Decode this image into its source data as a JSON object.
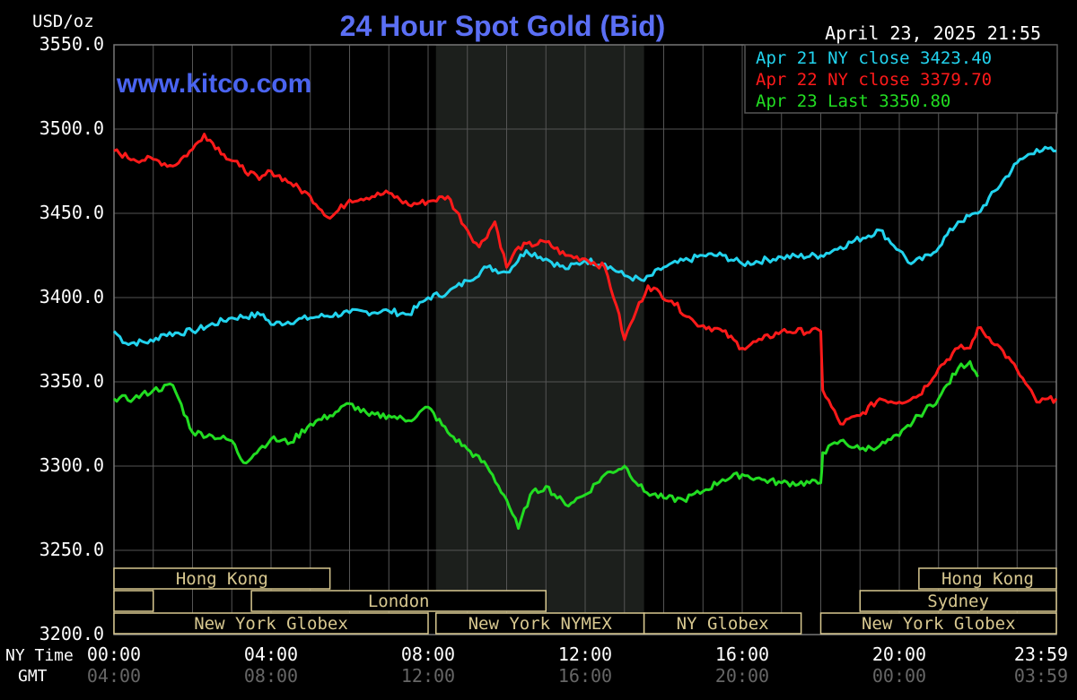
{
  "header": {
    "title": "24 Hour Spot Gold (Bid)",
    "unit_label": "USD/oz",
    "timestamp": "April 23, 2025 21:55",
    "watermark": "www.kitco.com"
  },
  "legend": [
    {
      "text": "Apr 21 NY close 3423.40",
      "color": "#22d3ee"
    },
    {
      "text": "Apr 22 NY close 3379.70",
      "color": "#ff1a1a"
    },
    {
      "text": "Apr 23 Last 3350.80",
      "color": "#22dd22"
    }
  ],
  "axis_labels": {
    "ny_time": "NY Time",
    "gmt": "GMT"
  },
  "colors": {
    "background": "#000000",
    "grid": "#555555",
    "nymex_shade": "#1c1f1c",
    "title": "#5b6ff5",
    "market_box": "#d8c890",
    "axis_text": "#ffffff",
    "gmt_text": "#666666"
  },
  "markets": [
    {
      "label": "Hong Kong",
      "start": 0,
      "end": 5.5,
      "row": 0
    },
    {
      "label": "",
      "start": 0,
      "end": 1.0,
      "row": 1
    },
    {
      "label": "London",
      "start": 3.5,
      "end": 11.0,
      "row": 1
    },
    {
      "label": "New York Globex",
      "start": 0,
      "end": 8.0,
      "row": 2
    },
    {
      "label": "New York NYMEX",
      "start": 8.2,
      "end": 13.5,
      "row": 2
    },
    {
      "label": "NY Globex",
      "start": 13.5,
      "end": 17.5,
      "row": 2
    },
    {
      "label": "Hong Kong",
      "start": 20.5,
      "end": 24.0,
      "row": 0
    },
    {
      "label": "Sydney",
      "start": 19.0,
      "end": 24.0,
      "row": 1
    },
    {
      "label": "New York Globex",
      "start": 18.0,
      "end": 24.0,
      "row": 2
    }
  ],
  "chart_data": {
    "type": "line",
    "title": "24 Hour Spot Gold (Bid)",
    "ylabel": "USD/oz",
    "x_unit": "hours (NY time)",
    "xlim": [
      0,
      24
    ],
    "ylim": [
      3200,
      3550
    ],
    "y_ticks": [
      "3550.0",
      "3500.0",
      "3450.0",
      "3400.0",
      "3350.0",
      "3300.0",
      "3250.0",
      "3200.0"
    ],
    "x_ticks": [
      {
        "ny": "00:00",
        "gmt": "04:00"
      },
      {
        "ny": "04:00",
        "gmt": "08:00"
      },
      {
        "ny": "08:00",
        "gmt": "12:00"
      },
      {
        "ny": "12:00",
        "gmt": "16:00"
      },
      {
        "ny": "16:00",
        "gmt": "20:00"
      },
      {
        "ny": "20:00",
        "gmt": "00:00"
      },
      {
        "ny": "23:59",
        "gmt": "03:59"
      }
    ],
    "nymex_session": [
      8.2,
      13.5
    ],
    "grid": true,
    "legend_position": "top-right",
    "series": [
      {
        "name": "Apr 21 NY close 3423.40",
        "color": "#22d3ee",
        "points": [
          [
            0,
            3380
          ],
          [
            0.3,
            3373
          ],
          [
            1.0,
            3374
          ],
          [
            1.2,
            3378
          ],
          [
            2.0,
            3380
          ],
          [
            3.0,
            3388
          ],
          [
            3.8,
            3390
          ],
          [
            4.0,
            3384
          ],
          [
            5.0,
            3388
          ],
          [
            6.0,
            3391
          ],
          [
            7.0,
            3392
          ],
          [
            7.5,
            3390
          ],
          [
            8.0,
            3400
          ],
          [
            8.5,
            3403
          ],
          [
            9.0,
            3410
          ],
          [
            9.5,
            3418
          ],
          [
            10.0,
            3415
          ],
          [
            10.5,
            3428
          ],
          [
            11.0,
            3423
          ],
          [
            11.5,
            3417
          ],
          [
            12.0,
            3422
          ],
          [
            12.5,
            3420
          ],
          [
            13.0,
            3413
          ],
          [
            13.5,
            3410
          ],
          [
            14.0,
            3418
          ],
          [
            15.0,
            3425
          ],
          [
            15.5,
            3425
          ],
          [
            16.0,
            3420
          ],
          [
            17.0,
            3424
          ],
          [
            18.0,
            3425
          ],
          [
            18.5,
            3430
          ],
          [
            19.5,
            3440
          ],
          [
            20.0,
            3428
          ],
          [
            20.3,
            3420
          ],
          [
            20.8,
            3425
          ],
          [
            21.5,
            3445
          ],
          [
            22.0,
            3450
          ],
          [
            23.0,
            3480
          ],
          [
            23.5,
            3488
          ],
          [
            24.0,
            3487
          ]
        ]
      },
      {
        "name": "Apr 22 NY close 3379.70",
        "color": "#ff1a1a",
        "points": [
          [
            0,
            3487
          ],
          [
            0.5,
            3482
          ],
          [
            1.0,
            3482
          ],
          [
            1.5,
            3478
          ],
          [
            2.0,
            3488
          ],
          [
            2.3,
            3497
          ],
          [
            2.8,
            3485
          ],
          [
            3.2,
            3478
          ],
          [
            3.7,
            3470
          ],
          [
            4.0,
            3475
          ],
          [
            4.5,
            3468
          ],
          [
            5.0,
            3460
          ],
          [
            5.5,
            3447
          ],
          [
            6.0,
            3458
          ],
          [
            7.0,
            3462
          ],
          [
            7.5,
            3455
          ],
          [
            8.0,
            3457
          ],
          [
            8.5,
            3460
          ],
          [
            9.0,
            3440
          ],
          [
            9.3,
            3430
          ],
          [
            9.7,
            3445
          ],
          [
            10.0,
            3418
          ],
          [
            10.3,
            3430
          ],
          [
            11.0,
            3433
          ],
          [
            11.5,
            3425
          ],
          [
            12.0,
            3423
          ],
          [
            12.5,
            3418
          ],
          [
            12.8,
            3395
          ],
          [
            13.0,
            3375
          ],
          [
            13.3,
            3392
          ],
          [
            13.6,
            3407
          ],
          [
            14.2,
            3398
          ],
          [
            14.8,
            3385
          ],
          [
            15.5,
            3380
          ],
          [
            16.0,
            3370
          ],
          [
            16.5,
            3375
          ],
          [
            17.0,
            3380
          ],
          [
            18.0,
            3380
          ],
          [
            18.05,
            3345
          ],
          [
            18.5,
            3325
          ],
          [
            19.0,
            3330
          ],
          [
            19.5,
            3340
          ],
          [
            20.0,
            3338
          ],
          [
            20.5,
            3342
          ],
          [
            21.0,
            3358
          ],
          [
            21.5,
            3370
          ],
          [
            21.8,
            3370
          ],
          [
            22.0,
            3382
          ],
          [
            22.5,
            3372
          ],
          [
            23.0,
            3357
          ],
          [
            23.5,
            3338
          ],
          [
            24.0,
            3340
          ]
        ]
      },
      {
        "name": "Apr 23 Last 3350.80",
        "color": "#22dd22",
        "points": [
          [
            0,
            3340
          ],
          [
            0.5,
            3340
          ],
          [
            1.0,
            3345
          ],
          [
            1.5,
            3348
          ],
          [
            2.0,
            3320
          ],
          [
            2.5,
            3318
          ],
          [
            3.0,
            3315
          ],
          [
            3.3,
            3302
          ],
          [
            3.7,
            3310
          ],
          [
            4.0,
            3316
          ],
          [
            4.5,
            3314
          ],
          [
            5.0,
            3325
          ],
          [
            5.5,
            3330
          ],
          [
            6.0,
            3337
          ],
          [
            6.5,
            3330
          ],
          [
            7.0,
            3330
          ],
          [
            7.5,
            3327
          ],
          [
            8.0,
            3335
          ],
          [
            8.5,
            3320
          ],
          [
            9.0,
            3310
          ],
          [
            9.5,
            3300
          ],
          [
            10.0,
            3280
          ],
          [
            10.3,
            3263
          ],
          [
            10.6,
            3283
          ],
          [
            11.0,
            3288
          ],
          [
            11.5,
            3277
          ],
          [
            12.0,
            3283
          ],
          [
            12.5,
            3295
          ],
          [
            13.0,
            3300
          ],
          [
            13.5,
            3285
          ],
          [
            14.0,
            3281
          ],
          [
            14.5,
            3280
          ],
          [
            15.0,
            3285
          ],
          [
            15.5,
            3292
          ],
          [
            16.0,
            3295
          ],
          [
            16.5,
            3292
          ],
          [
            17.0,
            3290
          ],
          [
            18.0,
            3290
          ],
          [
            18.05,
            3308
          ],
          [
            18.5,
            3315
          ],
          [
            19.0,
            3310
          ],
          [
            19.5,
            3312
          ],
          [
            20.0,
            3318
          ],
          [
            20.5,
            3330
          ],
          [
            21.0,
            3340
          ],
          [
            21.5,
            3358
          ],
          [
            21.8,
            3362
          ],
          [
            22.0,
            3353
          ]
        ]
      }
    ]
  }
}
